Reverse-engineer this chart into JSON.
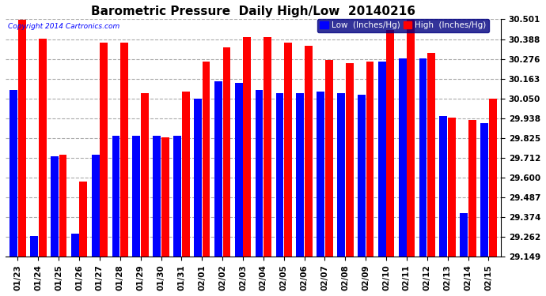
{
  "title": "Barometric Pressure  Daily High/Low  20140216",
  "copyright": "Copyright 2014 Cartronics.com",
  "dates": [
    "01/23",
    "01/24",
    "01/25",
    "01/26",
    "01/27",
    "01/28",
    "01/29",
    "01/30",
    "01/31",
    "02/01",
    "02/02",
    "02/03",
    "02/04",
    "02/05",
    "02/06",
    "02/07",
    "02/08",
    "02/09",
    "02/10",
    "02/11",
    "02/12",
    "02/13",
    "02/14",
    "02/15"
  ],
  "low_values": [
    30.1,
    29.27,
    29.72,
    29.28,
    29.73,
    29.84,
    29.84,
    29.84,
    29.84,
    30.05,
    30.15,
    30.14,
    30.1,
    30.08,
    30.08,
    30.09,
    30.08,
    30.07,
    30.26,
    30.28,
    30.28,
    29.95,
    29.4,
    29.91
  ],
  "high_values": [
    30.5,
    30.39,
    29.73,
    29.58,
    30.37,
    30.37,
    30.08,
    29.83,
    30.09,
    30.26,
    30.34,
    30.4,
    30.4,
    30.37,
    30.35,
    30.27,
    30.25,
    30.26,
    30.44,
    30.5,
    30.31,
    29.94,
    29.93,
    30.05
  ],
  "ymin": 29.149,
  "ymax": 30.501,
  "yticks": [
    30.501,
    30.388,
    30.276,
    30.163,
    30.05,
    29.938,
    29.825,
    29.712,
    29.6,
    29.487,
    29.374,
    29.262,
    29.149
  ],
  "low_color": "#0000ff",
  "high_color": "#ff0000",
  "bg_color": "#ffffff",
  "grid_color": "#aaaaaa",
  "title_fontsize": 11,
  "tick_fontsize": 7.5
}
